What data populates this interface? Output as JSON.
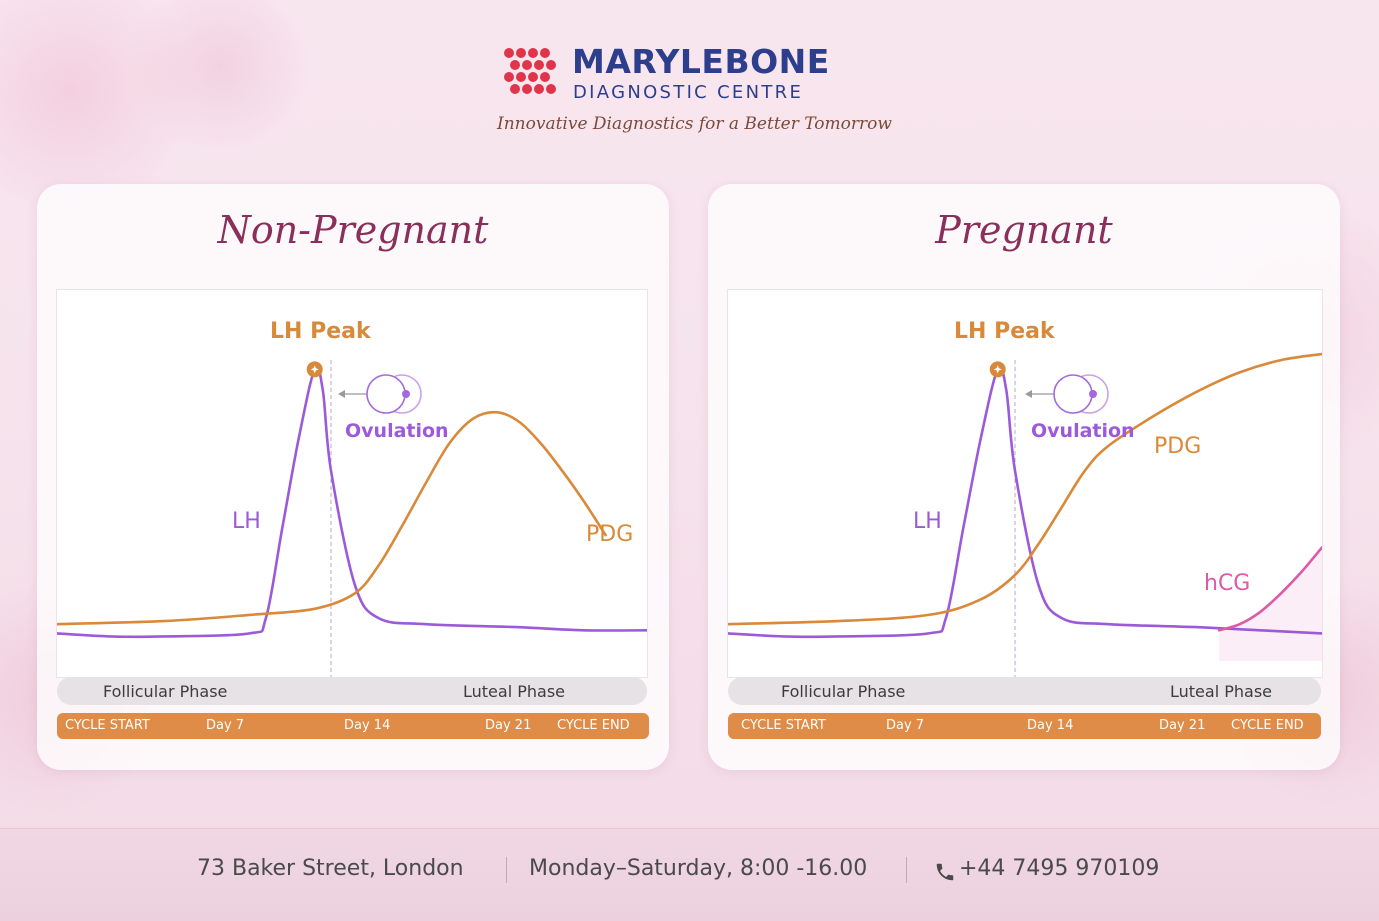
{
  "brand": {
    "name": "MARYLEBONE",
    "subtitle": "DIAGNOSTIC CENTRE",
    "tagline": "Innovative Diagnostics for a Better Tomorrow"
  },
  "colors": {
    "lh": "#9c5ad8",
    "pdg": "#d9893a",
    "hcg": "#dc5aa6",
    "title": "#8a2f5a",
    "brand_blue": "#2c3e8c",
    "brand_red": "#e0344a",
    "day_bar": "#de8c48"
  },
  "chart_data": [
    {
      "type": "line",
      "title": "Non-Pregnant",
      "x_unit": "cycle day",
      "xlim": [
        1,
        28
      ],
      "ylim": [
        0,
        100
      ],
      "ticks": [
        {
          "day": 1,
          "label": "CYCLE START"
        },
        {
          "day": 7,
          "label": "Day 7"
        },
        {
          "day": 14,
          "label": "Day 14"
        },
        {
          "day": 21,
          "label": "Day 21"
        },
        {
          "day": 28,
          "label": "CYCLE END"
        }
      ],
      "phases": [
        "Follicular Phase",
        "Luteal Phase"
      ],
      "series": [
        {
          "name": "LH",
          "points": [
            [
              1,
              9
            ],
            [
              3,
              8
            ],
            [
              5,
              8
            ],
            [
              9,
              9
            ],
            [
              10,
              14
            ],
            [
              11,
              43
            ],
            [
              12,
              72
            ],
            [
              13,
              95
            ],
            [
              13.5,
              88
            ],
            [
              14,
              62
            ],
            [
              15,
              25
            ],
            [
              16,
              14
            ],
            [
              18,
              12
            ],
            [
              22,
              11
            ],
            [
              25,
              10
            ],
            [
              28,
              10
            ]
          ]
        },
        {
          "name": "PDG",
          "points": [
            [
              1,
              12
            ],
            [
              5,
              13
            ],
            [
              9,
              15
            ],
            [
              13,
              17
            ],
            [
              15,
              22
            ],
            [
              16,
              31
            ],
            [
              17,
              44
            ],
            [
              18,
              58
            ],
            [
              19,
              71
            ],
            [
              20,
              79
            ],
            [
              21,
              81
            ],
            [
              22,
              78
            ],
            [
              23,
              71
            ],
            [
              24,
              62
            ],
            [
              25,
              52
            ],
            [
              26,
              41
            ]
          ]
        }
      ],
      "annotations": {
        "peak": "LH Peak",
        "ovulation": "Ovulation",
        "ovulation_day": 14
      }
    },
    {
      "type": "line",
      "title": "Pregnant",
      "x_unit": "cycle day",
      "xlim": [
        1,
        28
      ],
      "ylim": [
        0,
        100
      ],
      "ticks": [
        {
          "day": 1,
          "label": "CYCLE START"
        },
        {
          "day": 7,
          "label": "Day 7"
        },
        {
          "day": 14,
          "label": "Day 14"
        },
        {
          "day": 21,
          "label": "Day 21"
        },
        {
          "day": 28,
          "label": "CYCLE END"
        }
      ],
      "phases": [
        "Follicular Phase",
        "Luteal Phase"
      ],
      "series": [
        {
          "name": "LH",
          "points": [
            [
              1,
              9
            ],
            [
              3,
              8
            ],
            [
              5,
              8
            ],
            [
              9,
              9
            ],
            [
              10,
              14
            ],
            [
              11,
              43
            ],
            [
              12,
              72
            ],
            [
              13,
              95
            ],
            [
              13.5,
              88
            ],
            [
              14,
              62
            ],
            [
              15,
              25
            ],
            [
              16,
              14
            ],
            [
              18,
              12
            ],
            [
              22,
              11
            ],
            [
              25,
              10
            ],
            [
              28,
              9
            ]
          ]
        },
        {
          "name": "PDG",
          "points": [
            [
              1,
              12
            ],
            [
              5,
              13
            ],
            [
              9,
              15
            ],
            [
              12,
              20
            ],
            [
              14,
              28
            ],
            [
              15,
              38
            ],
            [
              16,
              50
            ],
            [
              17,
              62
            ],
            [
              18,
              70
            ],
            [
              20,
              80
            ],
            [
              22,
              88
            ],
            [
              24,
              94
            ],
            [
              26,
              98
            ],
            [
              28,
              100
            ]
          ]
        },
        {
          "name": "hCG",
          "points": [
            [
              23,
              10
            ],
            [
              24,
              12
            ],
            [
              25,
              16
            ],
            [
              26,
              22
            ],
            [
              27,
              29
            ],
            [
              28,
              37
            ]
          ]
        }
      ],
      "annotations": {
        "peak": "LH Peak",
        "ovulation": "Ovulation",
        "ovulation_day": 14
      }
    }
  ],
  "footer": {
    "address": "73 Baker Street, London",
    "hours": "Monday–Saturday, 8:00 -16.00",
    "phone": "+44 7495 970109"
  }
}
